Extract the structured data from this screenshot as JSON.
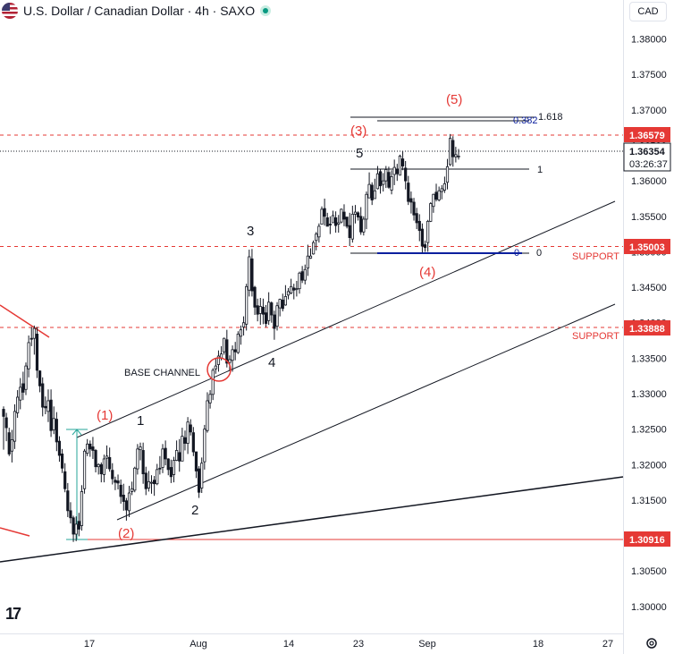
{
  "header": {
    "title": "U.S. Dollar / Canadian Dollar · 4h · SAXO",
    "currency": "CAD"
  },
  "icons": {
    "flag": "us-ca-flag-icon",
    "status": "market-status-dot-icon",
    "logo": "tradingview-logo-icon",
    "settings": "gear-icon"
  },
  "colors": {
    "up": "#131722",
    "red": "#e53935",
    "blue": "#0b1f9e",
    "cyan": "#26a69a"
  },
  "chart_data": {
    "type": "candlestick",
    "ylim": [
      1.2962,
      1.3855
    ],
    "y_ticks": [
      "1.38000",
      "1.37500",
      "1.37000",
      "1.36500",
      "1.36000",
      "1.35500",
      "1.35000",
      "1.34500",
      "1.34000",
      "1.33500",
      "1.33000",
      "1.32500",
      "1.32000",
      "1.31500",
      "1.31000",
      "1.30500",
      "1.30000"
    ],
    "x_ticks": [
      "17",
      "Aug",
      "14",
      "23",
      "Sep",
      "18",
      "27"
    ],
    "price_labels": {
      "upper": "1.36579",
      "current": "1.36354",
      "countdown": "03:26:37",
      "support_1": "1.35003",
      "support_2": "1.33888",
      "low": "1.30916"
    },
    "support_labels": [
      "SUPPORT",
      "SUPPORT"
    ],
    "fib_labels": {
      "f0": "0",
      "f1": "1",
      "f382": "0.382",
      "f1618": "1.618",
      "f0b": "0"
    },
    "wave_labels": {
      "w1": "(1)",
      "w2": "(2)",
      "w3": "(3)",
      "w4": "(4)",
      "w5": "(5)",
      "s1": "1",
      "s2": "2",
      "s3": "3",
      "s4": "4",
      "s5": "5"
    },
    "annotation": "BASE CHANNEL",
    "candles": [
      [
        1.3278,
        1.3268,
        1.3282,
        1.3221
      ],
      [
        1.3266,
        1.3252,
        1.3273,
        1.3233
      ],
      [
        1.3245,
        1.3215,
        1.3252,
        1.3212
      ],
      [
        1.3219,
        1.3235,
        1.3249,
        1.3203
      ],
      [
        1.3233,
        1.3275,
        1.3285,
        1.3222
      ],
      [
        1.3273,
        1.3295,
        1.3305,
        1.3266
      ],
      [
        1.3291,
        1.3309,
        1.3322,
        1.3278
      ],
      [
        1.3314,
        1.3302,
        1.3331,
        1.3291
      ],
      [
        1.3306,
        1.3339,
        1.3344,
        1.3298
      ],
      [
        1.3335,
        1.3372,
        1.3382,
        1.3323
      ],
      [
        1.3378,
        1.3377,
        1.3394,
        1.3367
      ],
      [
        1.3378,
        1.3392,
        1.3396,
        1.3355
      ],
      [
        1.3384,
        1.3333,
        1.3394,
        1.3322
      ],
      [
        1.3332,
        1.3311,
        1.3333,
        1.3302
      ],
      [
        1.3314,
        1.3281,
        1.3323,
        1.3268
      ],
      [
        1.3282,
        1.328,
        1.3296,
        1.3271
      ],
      [
        1.3275,
        1.329,
        1.3306,
        1.326
      ],
      [
        1.3291,
        1.3248,
        1.3306,
        1.3239
      ],
      [
        1.3249,
        1.3265,
        1.3282,
        1.3243
      ],
      [
        1.3264,
        1.3232,
        1.3274,
        1.3219
      ],
      [
        1.3233,
        1.3213,
        1.324,
        1.3204
      ],
      [
        1.3215,
        1.3195,
        1.3222,
        1.3188
      ],
      [
        1.319,
        1.3166,
        1.3202,
        1.3161
      ],
      [
        1.3163,
        1.3135,
        1.3174,
        1.3126
      ],
      [
        1.3135,
        1.3125,
        1.3147,
        1.3117
      ],
      [
        1.3125,
        1.3102,
        1.3128,
        1.3091
      ],
      [
        1.3102,
        1.3116,
        1.3127,
        1.3092
      ],
      [
        1.312,
        1.3109,
        1.3132,
        1.3099
      ],
      [
        1.3114,
        1.3162,
        1.3171,
        1.3107
      ],
      [
        1.3166,
        1.3219,
        1.3222,
        1.3159
      ],
      [
        1.3216,
        1.3229,
        1.3236,
        1.3212
      ],
      [
        1.3229,
        1.3222,
        1.3234,
        1.3211
      ],
      [
        1.3225,
        1.322,
        1.3239,
        1.3208
      ],
      [
        1.322,
        1.3197,
        1.3222,
        1.3189
      ],
      [
        1.3197,
        1.32,
        1.3202,
        1.3186
      ],
      [
        1.32,
        1.3187,
        1.3203,
        1.3175
      ],
      [
        1.3186,
        1.3208,
        1.3214,
        1.3175
      ],
      [
        1.3209,
        1.3212,
        1.3227,
        1.3194
      ],
      [
        1.321,
        1.3194,
        1.3224,
        1.319
      ],
      [
        1.3192,
        1.318,
        1.3202,
        1.3172
      ],
      [
        1.3178,
        1.3175,
        1.3183,
        1.3164
      ],
      [
        1.3177,
        1.3174,
        1.3186,
        1.3165
      ],
      [
        1.3171,
        1.3155,
        1.3179,
        1.3145
      ],
      [
        1.3157,
        1.3148,
        1.3173,
        1.3135
      ],
      [
        1.3149,
        1.3136,
        1.3153,
        1.3121
      ],
      [
        1.3135,
        1.316,
        1.317,
        1.3126
      ],
      [
        1.3162,
        1.3166,
        1.3176,
        1.3157
      ],
      [
        1.3164,
        1.3195,
        1.3197,
        1.3161
      ],
      [
        1.3194,
        1.3222,
        1.3229,
        1.3186
      ],
      [
        1.3221,
        1.3225,
        1.3231,
        1.3206
      ],
      [
        1.322,
        1.3187,
        1.3231,
        1.3173
      ],
      [
        1.3188,
        1.3166,
        1.3197,
        1.3157
      ],
      [
        1.3167,
        1.3176,
        1.3191,
        1.3162
      ],
      [
        1.3175,
        1.3175,
        1.3185,
        1.3159
      ],
      [
        1.3178,
        1.3173,
        1.3184,
        1.3156
      ],
      [
        1.3173,
        1.3193,
        1.3201,
        1.3171
      ],
      [
        1.3195,
        1.3194,
        1.3212,
        1.3186
      ],
      [
        1.3196,
        1.3222,
        1.3229,
        1.3188
      ],
      [
        1.3223,
        1.3208,
        1.3234,
        1.3199
      ],
      [
        1.3208,
        1.3193,
        1.3209,
        1.3185
      ],
      [
        1.3196,
        1.3183,
        1.3207,
        1.3174
      ],
      [
        1.3186,
        1.3206,
        1.3211,
        1.3175
      ],
      [
        1.3206,
        1.322,
        1.3234,
        1.3205
      ],
      [
        1.3217,
        1.3205,
        1.3236,
        1.319
      ],
      [
        1.3205,
        1.324,
        1.3252,
        1.3205
      ],
      [
        1.3238,
        1.323,
        1.3248,
        1.322
      ],
      [
        1.323,
        1.326,
        1.3267,
        1.3215
      ],
      [
        1.3256,
        1.3246,
        1.3264,
        1.3241
      ],
      [
        1.3245,
        1.3218,
        1.3253,
        1.3212
      ],
      [
        1.3218,
        1.3191,
        1.3218,
        1.3181
      ],
      [
        1.3194,
        1.3161,
        1.3198,
        1.3153
      ],
      [
        1.3167,
        1.3202,
        1.321,
        1.316
      ],
      [
        1.3204,
        1.325,
        1.3256,
        1.3193
      ],
      [
        1.3248,
        1.329,
        1.3302,
        1.3245
      ],
      [
        1.3287,
        1.3299,
        1.3305,
        1.3279
      ],
      [
        1.3299,
        1.3333,
        1.3336,
        1.3291
      ],
      [
        1.3335,
        1.3339,
        1.335,
        1.3328
      ],
      [
        1.3341,
        1.3353,
        1.3361,
        1.3331
      ],
      [
        1.335,
        1.3356,
        1.3367,
        1.3347
      ],
      [
        1.3359,
        1.3378,
        1.3379,
        1.3355
      ],
      [
        1.3376,
        1.3343,
        1.339,
        1.3337
      ],
      [
        1.3344,
        1.3348,
        1.3354,
        1.3332
      ],
      [
        1.3347,
        1.3362,
        1.3368,
        1.3331
      ],
      [
        1.3362,
        1.3359,
        1.3373,
        1.3347
      ],
      [
        1.3358,
        1.3384,
        1.3388,
        1.3356
      ],
      [
        1.3381,
        1.339,
        1.3396,
        1.3369
      ],
      [
        1.3394,
        1.34,
        1.3409,
        1.3382
      ],
      [
        1.3398,
        1.3451,
        1.3455,
        1.3389
      ],
      [
        1.3446,
        1.3493,
        1.3503,
        1.3437
      ],
      [
        1.349,
        1.3445,
        1.3504,
        1.3437
      ],
      [
        1.345,
        1.3422,
        1.3452,
        1.3411
      ],
      [
        1.3424,
        1.3412,
        1.3434,
        1.3402
      ],
      [
        1.3413,
        1.3423,
        1.3435,
        1.3397
      ],
      [
        1.3422,
        1.3412,
        1.3434,
        1.3398
      ],
      [
        1.3414,
        1.3399,
        1.3425,
        1.3394
      ],
      [
        1.3403,
        1.3429,
        1.3443,
        1.3397
      ],
      [
        1.3428,
        1.3411,
        1.343,
        1.34
      ],
      [
        1.3411,
        1.3392,
        1.3417,
        1.3376
      ],
      [
        1.3395,
        1.3424,
        1.3429,
        1.3389
      ],
      [
        1.3421,
        1.3433,
        1.3434,
        1.3409
      ],
      [
        1.3432,
        1.342,
        1.3441,
        1.3416
      ],
      [
        1.3425,
        1.3437,
        1.3453,
        1.3424
      ],
      [
        1.3439,
        1.3444,
        1.3449,
        1.3433
      ],
      [
        1.3442,
        1.3451,
        1.3462,
        1.344
      ],
      [
        1.3449,
        1.3446,
        1.3455,
        1.3433
      ],
      [
        1.3447,
        1.3448,
        1.3459,
        1.3437
      ],
      [
        1.3448,
        1.347,
        1.3472,
        1.3441
      ],
      [
        1.3472,
        1.346,
        1.348,
        1.3456
      ],
      [
        1.346,
        1.3475,
        1.3482,
        1.3454
      ],
      [
        1.3477,
        1.3494,
        1.351,
        1.3466
      ],
      [
        1.3491,
        1.3494,
        1.3505,
        1.349
      ],
      [
        1.3497,
        1.3513,
        1.3516,
        1.3496
      ],
      [
        1.3516,
        1.3525,
        1.3528,
        1.3502
      ],
      [
        1.3521,
        1.3536,
        1.354,
        1.3513
      ],
      [
        1.3539,
        1.356,
        1.3564,
        1.3539
      ],
      [
        1.3561,
        1.355,
        1.3575,
        1.3537
      ],
      [
        1.3548,
        1.3536,
        1.3555,
        1.3536
      ],
      [
        1.3539,
        1.3538,
        1.355,
        1.3525
      ],
      [
        1.3541,
        1.3551,
        1.3558,
        1.3541
      ],
      [
        1.3548,
        1.3537,
        1.3557,
        1.3527
      ],
      [
        1.3539,
        1.3541,
        1.3552,
        1.3527
      ],
      [
        1.3542,
        1.356,
        1.3561,
        1.354
      ],
      [
        1.3556,
        1.3546,
        1.3567,
        1.3536
      ],
      [
        1.3549,
        1.3536,
        1.3549,
        1.3533
      ],
      [
        1.3537,
        1.352,
        1.3555,
        1.3508
      ],
      [
        1.3518,
        1.3553,
        1.3565,
        1.3513
      ],
      [
        1.3553,
        1.3556,
        1.3566,
        1.354
      ],
      [
        1.3555,
        1.3549,
        1.3557,
        1.3544
      ],
      [
        1.355,
        1.3528,
        1.3563,
        1.3524
      ],
      [
        1.3528,
        1.3546,
        1.355,
        1.3523
      ],
      [
        1.3546,
        1.3581,
        1.3585,
        1.3532
      ],
      [
        1.3576,
        1.3595,
        1.3612,
        1.3576
      ],
      [
        1.3594,
        1.3573,
        1.3598,
        1.3566
      ],
      [
        1.3575,
        1.3586,
        1.3603,
        1.3575
      ],
      [
        1.3589,
        1.361,
        1.3621,
        1.3588
      ],
      [
        1.3613,
        1.3593,
        1.3616,
        1.3582
      ],
      [
        1.3595,
        1.36,
        1.3611,
        1.3585
      ],
      [
        1.36,
        1.3616,
        1.3621,
        1.359
      ],
      [
        1.3612,
        1.3591,
        1.362,
        1.3589
      ],
      [
        1.3587,
        1.3606,
        1.3615,
        1.3581
      ],
      [
        1.3609,
        1.3619,
        1.363,
        1.3594
      ],
      [
        1.3616,
        1.361,
        1.3624,
        1.36
      ],
      [
        1.3608,
        1.3635,
        1.3637,
        1.3608
      ],
      [
        1.3631,
        1.3621,
        1.3642,
        1.3615
      ],
      [
        1.3618,
        1.36,
        1.3628,
        1.3588
      ],
      [
        1.3597,
        1.3571,
        1.3607,
        1.3566
      ],
      [
        1.3575,
        1.357,
        1.3585,
        1.3554
      ],
      [
        1.357,
        1.3552,
        1.3576,
        1.3544
      ],
      [
        1.3554,
        1.3541,
        1.3562,
        1.3532
      ],
      [
        1.3543,
        1.353,
        1.3553,
        1.3515
      ],
      [
        1.3532,
        1.3508,
        1.354,
        1.3499
      ],
      [
        1.351,
        1.3506,
        1.3516,
        1.35
      ],
      [
        1.3513,
        1.3543,
        1.3545,
        1.35
      ],
      [
        1.3543,
        1.3568,
        1.357,
        1.3542
      ],
      [
        1.3564,
        1.3581,
        1.3582,
        1.3555
      ],
      [
        1.3584,
        1.3574,
        1.3596,
        1.3571
      ],
      [
        1.3573,
        1.3586,
        1.3592,
        1.3571
      ],
      [
        1.3585,
        1.3589,
        1.3594,
        1.3574
      ],
      [
        1.3587,
        1.3596,
        1.3606,
        1.3583
      ],
      [
        1.3598,
        1.362,
        1.3631,
        1.3588
      ],
      [
        1.3623,
        1.366,
        1.3666,
        1.3621
      ],
      [
        1.3657,
        1.3634,
        1.3663,
        1.362
      ],
      [
        1.3634,
        1.3637,
        1.3648,
        1.3626
      ],
      [
        1.3635,
        1.3635,
        1.3645,
        1.363
      ]
    ]
  }
}
